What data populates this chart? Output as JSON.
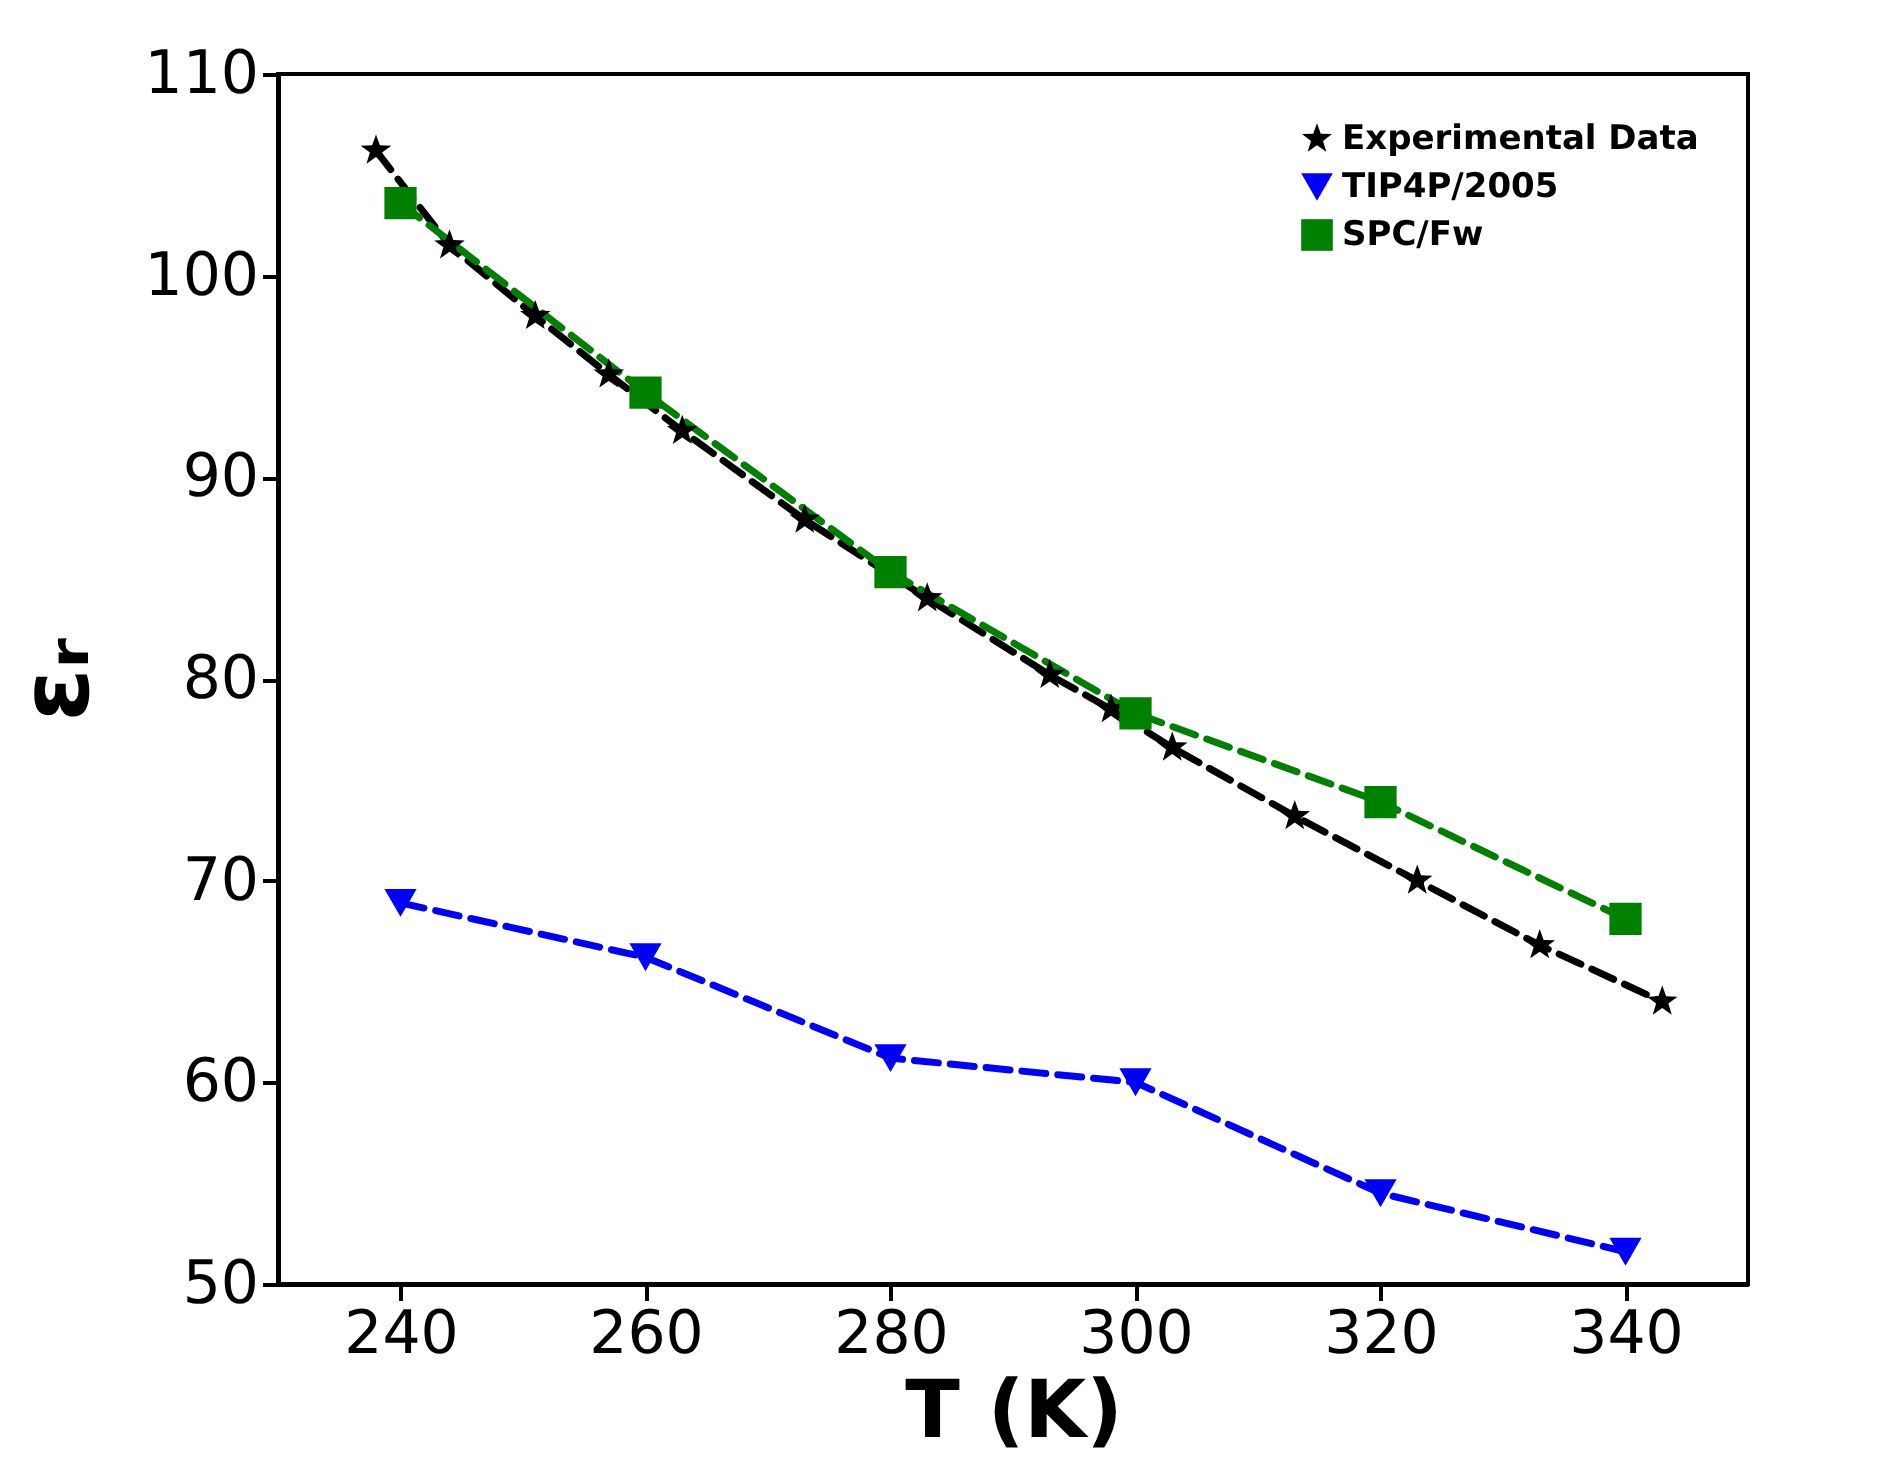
{
  "chart_data": {
    "type": "line",
    "xlabel": "T (K)",
    "ylabel": "εᵣ",
    "xlim": [
      230,
      350
    ],
    "xticks": [
      240,
      260,
      280,
      300,
      320,
      340
    ],
    "ylim": [
      50,
      110
    ],
    "yticks": [
      50,
      60,
      70,
      80,
      90,
      100,
      110
    ],
    "grid": false,
    "legend": "top right",
    "line_style": "dashed",
    "series": [
      {
        "name": "Experimental Data",
        "color": "#000000",
        "marker": "star",
        "x": [
          238,
          244,
          251,
          257,
          263,
          273,
          283,
          293,
          298,
          303,
          313,
          323,
          333,
          343
        ],
        "values": [
          106.2,
          101.5,
          98.0,
          95.1,
          92.3,
          87.9,
          84.0,
          80.2,
          78.5,
          76.6,
          73.2,
          70.0,
          66.8,
          64.0
        ]
      },
      {
        "name": "TIP4P/2005",
        "color": "#0000ff",
        "marker": "triangle",
        "x": [
          240,
          260,
          280,
          300,
          320,
          340
        ],
        "values": [
          68.9,
          66.2,
          61.2,
          60.0,
          54.5,
          51.6
        ]
      },
      {
        "name": "SPC/Fw",
        "color": "#008000",
        "marker": "square",
        "x": [
          240,
          260,
          280,
          300,
          320,
          340
        ],
        "values": [
          103.6,
          94.2,
          85.3,
          78.3,
          73.9,
          68.1
        ]
      }
    ]
  }
}
